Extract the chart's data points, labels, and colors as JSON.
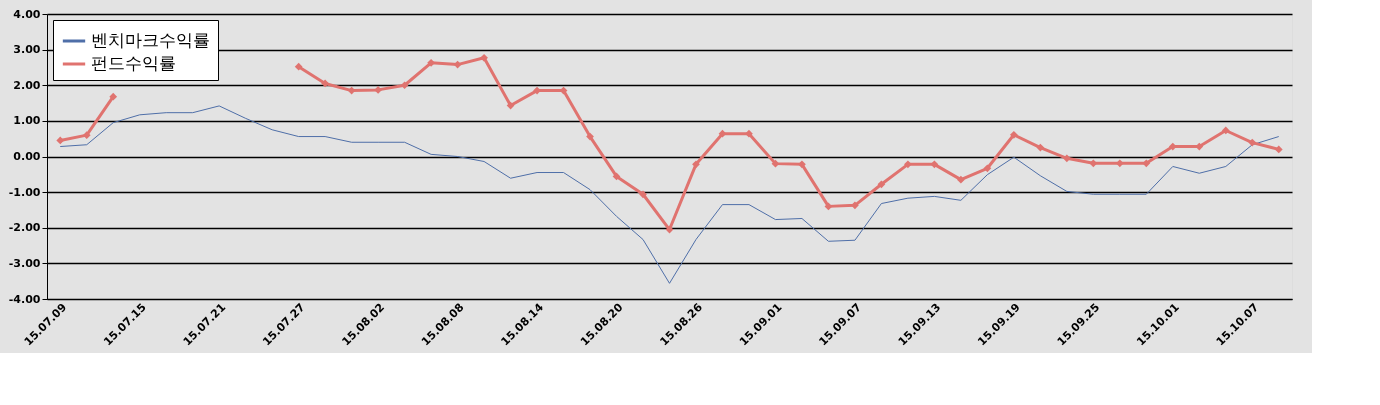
{
  "chart_data": {
    "type": "line",
    "categories": [
      "15.07.09",
      null,
      null,
      "15.07.15",
      null,
      null,
      "15.07.21",
      null,
      null,
      "15.07.27",
      null,
      null,
      "15.08.02",
      null,
      null,
      "15.08.08",
      null,
      null,
      "15.08.14",
      null,
      null,
      "15.08.20",
      null,
      null,
      "15.08.26",
      null,
      null,
      "15.09.01",
      null,
      null,
      "15.09.07",
      null,
      null,
      "15.09.13",
      null,
      null,
      "15.09.19",
      null,
      null,
      "15.09.25",
      null,
      null,
      "15.10.01",
      null,
      null,
      "15.10.07",
      null
    ],
    "series": [
      {
        "name": "벤치마크수익률",
        "color": "#4f6fa8",
        "marker": "none",
        "values": [
          0.28,
          0.33,
          0.95,
          1.17,
          1.23,
          1.23,
          1.42,
          1.07,
          0.75,
          0.56,
          0.56,
          0.4,
          0.4,
          0.4,
          0.06,
          0.0,
          -0.14,
          -0.61,
          -0.45,
          -0.45,
          -0.93,
          -1.68,
          -2.33,
          -3.56,
          -2.33,
          -1.35,
          -1.35,
          -1.77,
          -1.74,
          -2.38,
          -2.35,
          -1.32,
          -1.17,
          -1.12,
          -1.23,
          -0.51,
          -0.02,
          -0.54,
          -0.98,
          -1.06,
          -1.06,
          -1.06,
          -0.28,
          -0.47,
          -0.28,
          0.33,
          0.56
        ]
      },
      {
        "name": "펀드수익률",
        "color": "#e0736f",
        "marker": "diamond",
        "values": [
          0.45,
          0.6,
          1.68,
          null,
          null,
          null,
          null,
          null,
          null,
          2.52,
          2.05,
          1.85,
          1.87,
          2.0,
          2.63,
          2.58,
          2.77,
          1.43,
          1.85,
          1.85,
          0.56,
          -0.56,
          -1.06,
          -2.05,
          -0.22,
          0.64,
          0.64,
          -0.2,
          -0.22,
          -1.4,
          -1.37,
          -0.78,
          -0.22,
          -0.22,
          -0.65,
          -0.33,
          0.61,
          0.25,
          -0.05,
          -0.19,
          -0.19,
          -0.19,
          0.28,
          0.28,
          0.73,
          0.39,
          0.2
        ]
      }
    ],
    "ylim": [
      -4,
      4
    ],
    "yticks": [
      {
        "value": -4,
        "label": "-4.00"
      },
      {
        "value": -3,
        "label": "-3.00"
      },
      {
        "value": -2,
        "label": "-2.00"
      },
      {
        "value": -1,
        "label": "-1.00"
      },
      {
        "value": 0,
        "label": "0.00"
      },
      {
        "value": 1,
        "label": "1.00"
      },
      {
        "value": 2,
        "label": "2.00"
      },
      {
        "value": 3,
        "label": "3.00"
      },
      {
        "value": 4,
        "label": "4.00"
      }
    ],
    "grid": "y",
    "legend": "top left"
  }
}
